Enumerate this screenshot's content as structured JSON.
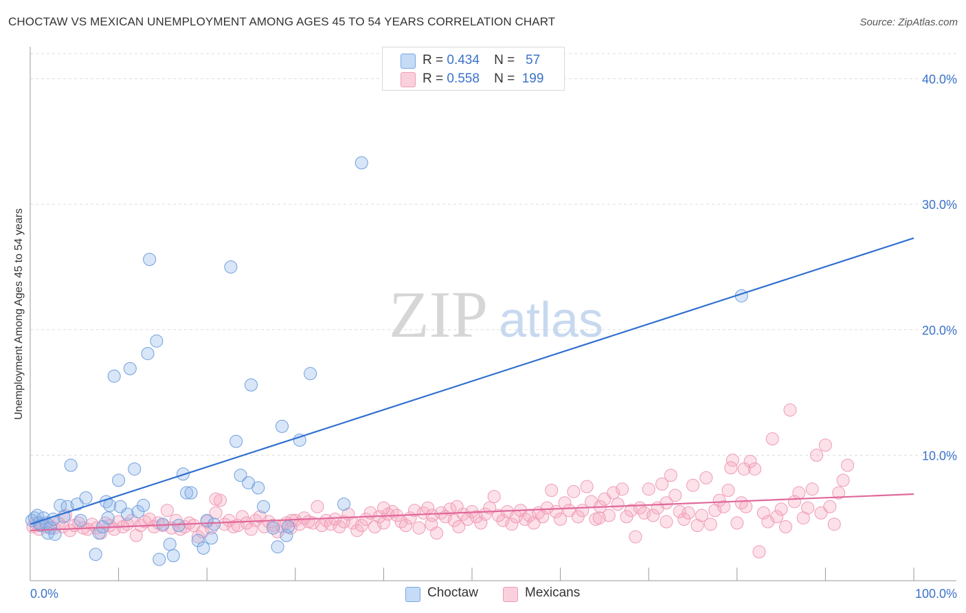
{
  "header": {
    "title": "CHOCTAW VS MEXICAN UNEMPLOYMENT AMONG AGES 45 TO 54 YEARS CORRELATION CHART",
    "source": "Source: ZipAtlas.com"
  },
  "legend": {
    "rows": [
      {
        "r_label": "R =",
        "r_value": "0.434",
        "n_label": "N =",
        "n_value": "57"
      },
      {
        "r_label": "R =",
        "r_value": "0.558",
        "n_label": "N =",
        "n_value": "199"
      }
    ]
  },
  "watermark": {
    "zip": "ZIP",
    "atlas": "atlas"
  },
  "chart_data": {
    "type": "scatter",
    "title": "CHOCTAW VS MEXICAN UNEMPLOYMENT AMONG AGES 45 TO 54 YEARS CORRELATION CHART",
    "xlabel": "",
    "ylabel": "Unemployment Among Ages 45 to 54 years",
    "xlim": [
      0,
      100
    ],
    "ylim": [
      0,
      42
    ],
    "x_tick_labels": [
      "0.0%",
      "100.0%"
    ],
    "y_ticks": [
      10,
      20,
      30,
      40
    ],
    "y_tick_labels": [
      "10.0%",
      "20.0%",
      "30.0%",
      "40.0%"
    ],
    "grid": true,
    "legend_position": "top-center",
    "series": [
      {
        "name": "Choctaw",
        "color": "#8fb7ea",
        "line_color": "#2f6fd0",
        "r": 0.434,
        "n": 57,
        "trend": [
          [
            0,
            4.5
          ],
          [
            100,
            27.3
          ]
        ],
        "points": [
          [
            0.2,
            4.8
          ],
          [
            0.5,
            5.0
          ],
          [
            0.8,
            5.2
          ],
          [
            1.0,
            4.6
          ],
          [
            1.2,
            4.4
          ],
          [
            1.5,
            5.0
          ],
          [
            1.8,
            4.6
          ],
          [
            2.0,
            3.8
          ],
          [
            2.3,
            4.2
          ],
          [
            2.6,
            4.9
          ],
          [
            2.8,
            3.7
          ],
          [
            3.4,
            6.0
          ],
          [
            3.8,
            5.1
          ],
          [
            4.2,
            5.9
          ],
          [
            4.6,
            9.2
          ],
          [
            5.3,
            6.1
          ],
          [
            5.7,
            4.8
          ],
          [
            6.3,
            6.6
          ],
          [
            7.4,
            2.1
          ],
          [
            7.8,
            3.8
          ],
          [
            8.2,
            4.3
          ],
          [
            8.6,
            6.3
          ],
          [
            8.8,
            5.0
          ],
          [
            9.0,
            6.0
          ],
          [
            9.5,
            16.3
          ],
          [
            10.0,
            8.0
          ],
          [
            10.2,
            5.9
          ],
          [
            11.0,
            5.3
          ],
          [
            11.3,
            16.9
          ],
          [
            11.8,
            8.9
          ],
          [
            12.2,
            5.5
          ],
          [
            12.8,
            6.0
          ],
          [
            13.3,
            18.1
          ],
          [
            13.5,
            25.6
          ],
          [
            14.3,
            19.1
          ],
          [
            14.6,
            1.7
          ],
          [
            15.0,
            4.5
          ],
          [
            15.8,
            2.9
          ],
          [
            16.2,
            2.0
          ],
          [
            16.8,
            4.4
          ],
          [
            17.3,
            8.5
          ],
          [
            17.7,
            7.0
          ],
          [
            18.2,
            7.0
          ],
          [
            19.0,
            3.2
          ],
          [
            19.6,
            2.6
          ],
          [
            20.0,
            4.8
          ],
          [
            20.5,
            3.4
          ],
          [
            20.8,
            4.5
          ],
          [
            22.7,
            25.0
          ],
          [
            23.3,
            11.1
          ],
          [
            23.8,
            8.4
          ],
          [
            24.7,
            7.8
          ],
          [
            25.0,
            15.6
          ],
          [
            25.8,
            7.4
          ],
          [
            26.4,
            5.9
          ],
          [
            27.5,
            4.2
          ],
          [
            28.0,
            2.7
          ],
          [
            28.5,
            12.3
          ],
          [
            29.0,
            3.6
          ],
          [
            29.2,
            4.3
          ],
          [
            30.5,
            11.2
          ],
          [
            31.7,
            16.5
          ],
          [
            35.5,
            6.1
          ],
          [
            37.5,
            33.3
          ],
          [
            80.5,
            22.7
          ]
        ]
      },
      {
        "name": "Mexicans",
        "color": "#f5a9c0",
        "line_color": "#e0689a",
        "r": 0.558,
        "n": 199,
        "trend": [
          [
            0,
            4.0
          ],
          [
            100,
            6.9
          ]
        ],
        "points": [
          [
            0.3,
            4.3
          ],
          [
            0.6,
            4.6
          ],
          [
            1.0,
            4.1
          ],
          [
            1.4,
            4.5
          ],
          [
            1.8,
            4.3
          ],
          [
            2.2,
            4.4
          ],
          [
            2.7,
            4.2
          ],
          [
            3.2,
            4.6
          ],
          [
            3.7,
            4.3
          ],
          [
            4.0,
            5.2
          ],
          [
            4.5,
            4.0
          ],
          [
            5.0,
            4.4
          ],
          [
            5.5,
            4.6
          ],
          [
            6.0,
            4.2
          ],
          [
            6.5,
            4.1
          ],
          [
            7.0,
            4.5
          ],
          [
            7.5,
            4.2
          ],
          [
            8.0,
            3.8
          ],
          [
            8.5,
            4.6
          ],
          [
            9.0,
            4.4
          ],
          [
            9.5,
            4.1
          ],
          [
            10.0,
            4.7
          ],
          [
            10.5,
            4.3
          ],
          [
            11.0,
            4.5
          ],
          [
            11.5,
            4.8
          ],
          [
            12.0,
            3.6
          ],
          [
            12.5,
            4.4
          ],
          [
            13.0,
            4.7
          ],
          [
            13.5,
            4.9
          ],
          [
            14.0,
            4.3
          ],
          [
            14.5,
            4.6
          ],
          [
            15.0,
            4.4
          ],
          [
            15.5,
            5.6
          ],
          [
            16.0,
            4.2
          ],
          [
            16.5,
            4.8
          ],
          [
            17.0,
            4.1
          ],
          [
            17.5,
            4.3
          ],
          [
            18.0,
            4.6
          ],
          [
            18.5,
            4.4
          ],
          [
            19.0,
            3.5
          ],
          [
            19.5,
            3.9
          ],
          [
            20.0,
            4.7
          ],
          [
            20.5,
            4.2
          ],
          [
            21.0,
            5.4
          ],
          [
            21.5,
            6.4
          ],
          [
            22.0,
            4.5
          ],
          [
            22.5,
            4.8
          ],
          [
            23.0,
            4.3
          ],
          [
            23.5,
            4.4
          ],
          [
            24.0,
            5.1
          ],
          [
            24.5,
            4.6
          ],
          [
            25.0,
            4.1
          ],
          [
            25.5,
            4.8
          ],
          [
            26.0,
            5.1
          ],
          [
            26.5,
            4.3
          ],
          [
            27.0,
            4.7
          ],
          [
            27.5,
            4.4
          ],
          [
            28.0,
            3.9
          ],
          [
            28.5,
            4.3
          ],
          [
            29.0,
            4.6
          ],
          [
            29.5,
            4.2
          ],
          [
            30.0,
            4.8
          ],
          [
            30.5,
            4.5
          ],
          [
            31.0,
            5.0
          ],
          [
            31.5,
            4.7
          ],
          [
            32.0,
            4.6
          ],
          [
            32.5,
            5.9
          ],
          [
            33.0,
            4.4
          ],
          [
            33.5,
            4.8
          ],
          [
            34.0,
            4.5
          ],
          [
            34.5,
            4.9
          ],
          [
            35.0,
            4.3
          ],
          [
            35.5,
            4.7
          ],
          [
            36.0,
            5.3
          ],
          [
            36.5,
            4.6
          ],
          [
            37.0,
            4.0
          ],
          [
            37.5,
            4.4
          ],
          [
            38.0,
            4.9
          ],
          [
            38.5,
            5.4
          ],
          [
            39.0,
            4.3
          ],
          [
            39.5,
            5.1
          ],
          [
            40.0,
            4.6
          ],
          [
            40.5,
            5.3
          ],
          [
            41.0,
            5.5
          ],
          [
            41.5,
            5.2
          ],
          [
            42.0,
            4.7
          ],
          [
            42.5,
            4.4
          ],
          [
            43.0,
            5.0
          ],
          [
            43.5,
            5.6
          ],
          [
            44.0,
            4.2
          ],
          [
            44.5,
            5.4
          ],
          [
            45.0,
            5.8
          ],
          [
            45.5,
            5.2
          ],
          [
            46.0,
            3.8
          ],
          [
            46.5,
            5.4
          ],
          [
            47.0,
            5.1
          ],
          [
            47.5,
            5.7
          ],
          [
            48.0,
            4.8
          ],
          [
            48.5,
            4.3
          ],
          [
            49.0,
            5.3
          ],
          [
            49.5,
            4.9
          ],
          [
            50.0,
            5.5
          ],
          [
            50.5,
            5.1
          ],
          [
            51.0,
            4.6
          ],
          [
            51.5,
            5.3
          ],
          [
            52.0,
            5.8
          ],
          [
            52.5,
            6.7
          ],
          [
            53.0,
            5.2
          ],
          [
            53.5,
            4.8
          ],
          [
            54.0,
            5.5
          ],
          [
            54.5,
            4.5
          ],
          [
            55.0,
            5.1
          ],
          [
            55.5,
            5.6
          ],
          [
            56.0,
            4.9
          ],
          [
            56.5,
            5.2
          ],
          [
            57.0,
            4.6
          ],
          [
            57.5,
            5.4
          ],
          [
            58.0,
            5.1
          ],
          [
            58.5,
            5.8
          ],
          [
            59.0,
            7.2
          ],
          [
            59.5,
            5.5
          ],
          [
            60.0,
            4.9
          ],
          [
            60.5,
            6.2
          ],
          [
            61.0,
            5.6
          ],
          [
            61.5,
            7.1
          ],
          [
            62.0,
            5.1
          ],
          [
            62.5,
            5.6
          ],
          [
            63.0,
            7.5
          ],
          [
            63.5,
            6.3
          ],
          [
            64.0,
            4.9
          ],
          [
            64.5,
            5.9
          ],
          [
            65.0,
            6.5
          ],
          [
            65.5,
            5.2
          ],
          [
            66.0,
            7.0
          ],
          [
            66.5,
            6.1
          ],
          [
            67.0,
            7.3
          ],
          [
            67.5,
            5.1
          ],
          [
            68.0,
            5.6
          ],
          [
            68.5,
            3.5
          ],
          [
            69.0,
            5.8
          ],
          [
            69.5,
            5.4
          ],
          [
            70.0,
            7.3
          ],
          [
            70.5,
            5.2
          ],
          [
            71.0,
            5.8
          ],
          [
            71.5,
            7.7
          ],
          [
            72.0,
            4.7
          ],
          [
            72.5,
            8.4
          ],
          [
            73.0,
            6.8
          ],
          [
            73.5,
            5.5
          ],
          [
            74.0,
            4.9
          ],
          [
            74.5,
            5.4
          ],
          [
            75.0,
            7.6
          ],
          [
            75.5,
            4.4
          ],
          [
            76.0,
            5.2
          ],
          [
            76.5,
            8.2
          ],
          [
            77.0,
            4.5
          ],
          [
            77.5,
            5.6
          ],
          [
            78.0,
            6.4
          ],
          [
            78.5,
            5.9
          ],
          [
            79.0,
            7.2
          ],
          [
            79.5,
            9.6
          ],
          [
            80.0,
            4.6
          ],
          [
            80.5,
            6.2
          ],
          [
            81.0,
            5.9
          ],
          [
            81.5,
            9.5
          ],
          [
            82.0,
            8.9
          ],
          [
            82.5,
            2.3
          ],
          [
            83.0,
            5.4
          ],
          [
            83.5,
            4.7
          ],
          [
            84.0,
            11.3
          ],
          [
            84.5,
            5.1
          ],
          [
            85.0,
            5.7
          ],
          [
            85.5,
            4.3
          ],
          [
            86.0,
            13.6
          ],
          [
            86.5,
            6.3
          ],
          [
            87.0,
            7.0
          ],
          [
            87.5,
            5.0
          ],
          [
            88.0,
            5.8
          ],
          [
            88.5,
            7.3
          ],
          [
            89.0,
            10.0
          ],
          [
            89.5,
            5.4
          ],
          [
            90.0,
            10.8
          ],
          [
            90.5,
            5.9
          ],
          [
            91.0,
            4.5
          ],
          [
            91.5,
            7.0
          ],
          [
            92.0,
            8.0
          ],
          [
            92.5,
            9.2
          ],
          [
            72.0,
            6.2
          ],
          [
            79.3,
            9.0
          ],
          [
            80.8,
            8.9
          ],
          [
            64.4,
            5.0
          ],
          [
            48.3,
            5.9
          ],
          [
            45.4,
            4.5
          ],
          [
            40.0,
            5.8
          ],
          [
            29.6,
            4.8
          ],
          [
            21.0,
            6.5
          ]
        ]
      }
    ]
  },
  "bottom_legend": [
    {
      "label": "Choctaw"
    },
    {
      "label": "Mexicans"
    }
  ]
}
